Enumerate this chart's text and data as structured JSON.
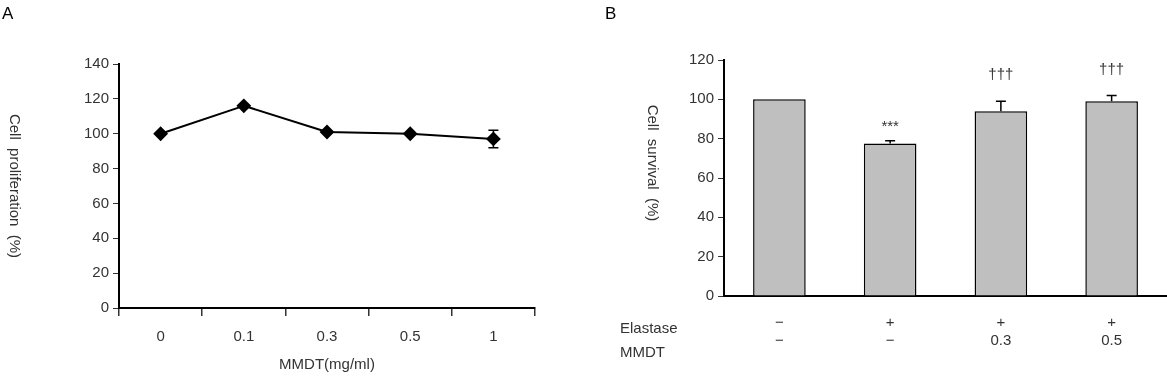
{
  "chart_data": [
    {
      "type": "line",
      "title": "A",
      "categories": [
        "0",
        "0.1",
        "0.3",
        "0.5",
        "1"
      ],
      "xlabel": "MMDT(mg/ml)",
      "ylabel": "Cell  proliferation  (%)",
      "series": [
        {
          "color": "#000000",
          "values": [
            100,
            116,
            101,
            100,
            97
          ],
          "errors": [
            null,
            null,
            null,
            null,
            [
              92,
              102
            ]
          ]
        }
      ],
      "ylim": [
        0,
        140
      ],
      "yticks": [
        0,
        20,
        40,
        60,
        80,
        100,
        120,
        140
      ],
      "marker": "diamond",
      "line_style": "solid",
      "grid": false,
      "legend": false
    },
    {
      "type": "bar",
      "title": "B",
      "categories": [
        "−\n−",
        "+\n−",
        "+\n0.3",
        "+\n0.5"
      ],
      "xlabel": "Elastase\nMMDT",
      "ylabel": "Cell  survival  (%)",
      "series": [
        {
          "color": "#bfbfbf",
          "values": [
            100,
            77.5,
            94,
            99
          ],
          "errors": [
            null,
            [
              77.5,
              79
            ],
            [
              94,
              99
            ],
            [
              99,
              102
            ]
          ]
        }
      ],
      "ylim": [
        0,
        120
      ],
      "yticks": [
        0,
        20,
        40,
        60,
        80,
        100,
        120
      ],
      "grid": false,
      "legend": false,
      "annotations": [
        "***",
        "†††",
        "†††"
      ]
    }
  ]
}
